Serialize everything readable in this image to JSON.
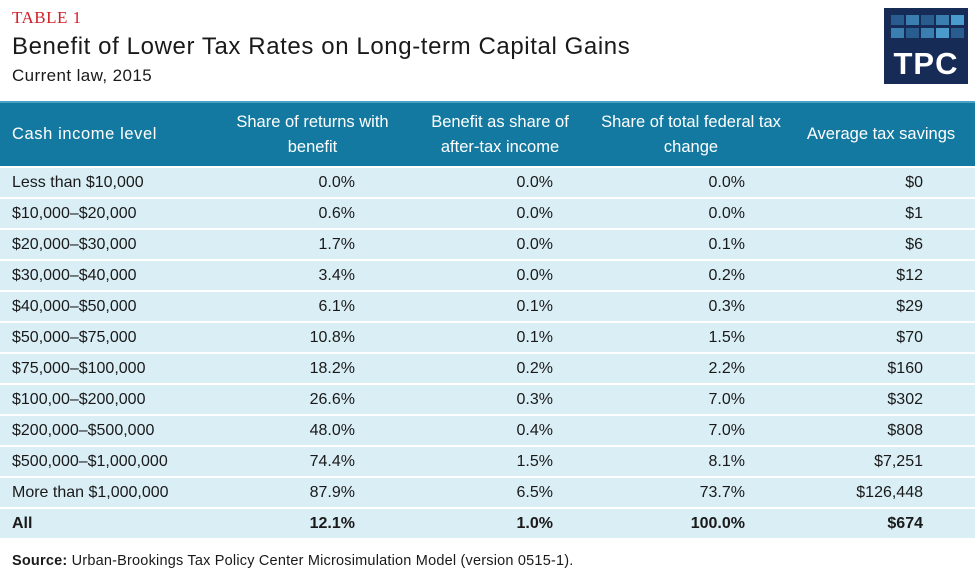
{
  "header": {
    "label": "TABLE 1",
    "title": "Benefit of Lower Tax Rates on Long-term Capital Gains",
    "subtitle": "Current law, 2015",
    "logo_text": "TPC"
  },
  "colors": {
    "header_bg": "#1479a0",
    "row_bg": "#d9eef5",
    "label_red": "#d0202a",
    "logo_bg": "#162b55"
  },
  "chart_data": {
    "type": "table",
    "columns": [
      "Cash income level",
      "Share of returns with benefit",
      "Benefit as share of after-tax income",
      "Share of total federal tax change",
      "Average tax savings"
    ],
    "rows": [
      [
        "Less than $10,000",
        "0.0%",
        "0.0%",
        "0.0%",
        "$0"
      ],
      [
        "$10,000–$20,000",
        "0.6%",
        "0.0%",
        "0.0%",
        "$1"
      ],
      [
        "$20,000–$30,000",
        "1.7%",
        "0.0%",
        "0.1%",
        "$6"
      ],
      [
        "$30,000–$40,000",
        "3.4%",
        "0.0%",
        "0.2%",
        "$12"
      ],
      [
        "$40,000–$50,000",
        "6.1%",
        "0.1%",
        "0.3%",
        "$29"
      ],
      [
        "$50,000–$75,000",
        "10.8%",
        "0.1%",
        "1.5%",
        "$70"
      ],
      [
        "$75,000–$100,000",
        "18.2%",
        "0.2%",
        "2.2%",
        "$160"
      ],
      [
        "$100,00–$200,000",
        "26.6%",
        "0.3%",
        "7.0%",
        "$302"
      ],
      [
        "$200,000–$500,000",
        "48.0%",
        "0.4%",
        "7.0%",
        "$808"
      ],
      [
        "$500,000–$1,000,000",
        "74.4%",
        "1.5%",
        "8.1%",
        "$7,251"
      ],
      [
        "More than $1,000,000",
        "87.9%",
        "6.5%",
        "73.7%",
        "$126,448"
      ]
    ],
    "total": [
      "All",
      "12.1%",
      "1.0%",
      "100.0%",
      "$674"
    ]
  },
  "source": {
    "label": "Source:",
    "text": " Urban-Brookings Tax Policy Center Microsimulation Model (version 0515-1)."
  }
}
